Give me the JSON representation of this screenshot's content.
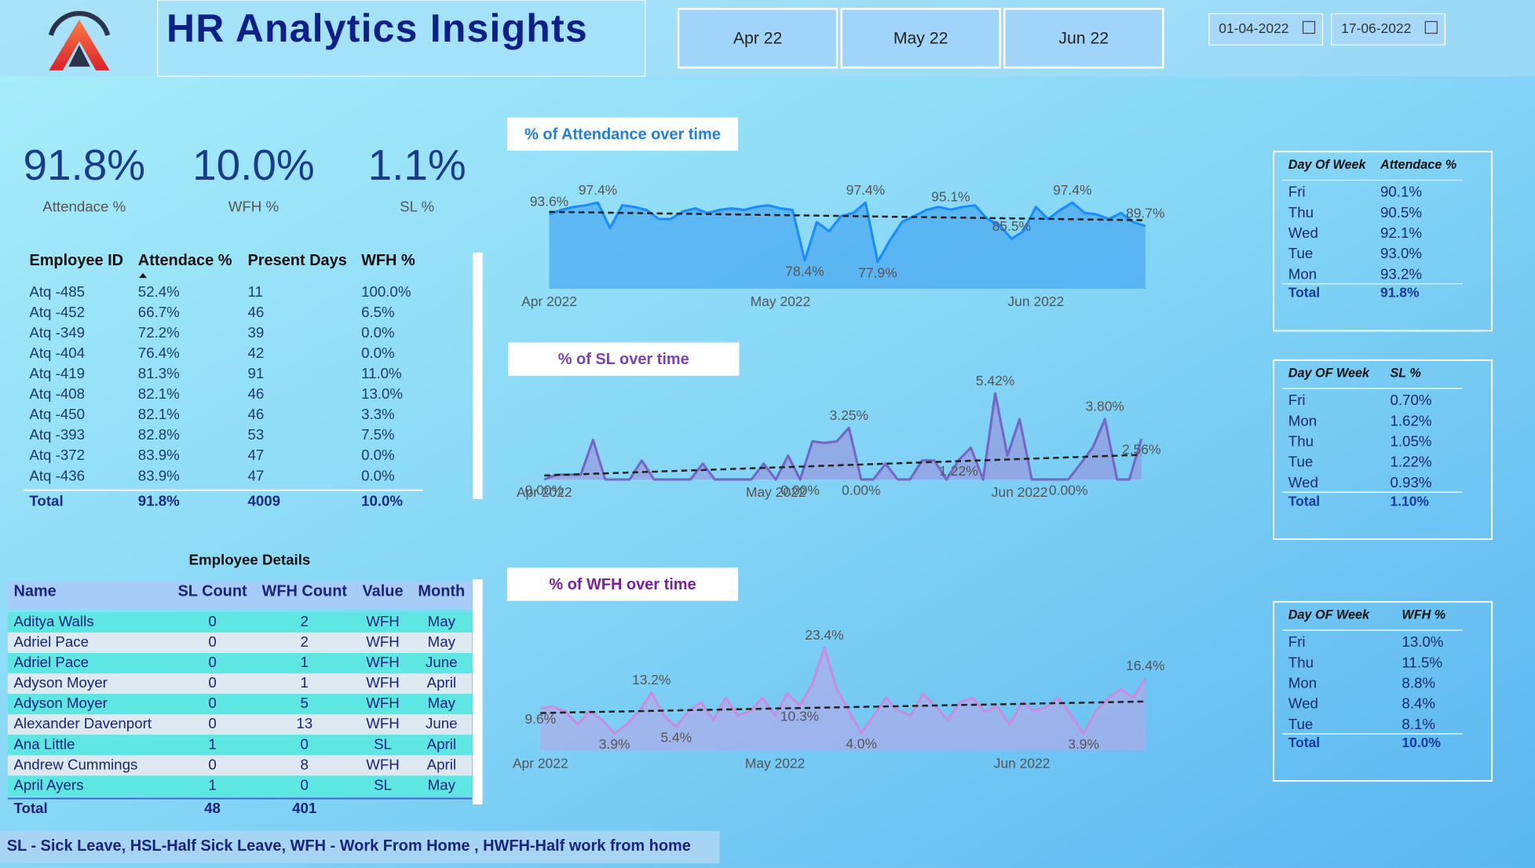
{
  "header": {
    "title": "HR Analytics Insights",
    "months": [
      "Apr 22",
      "May 22",
      "Jun 22"
    ],
    "date_from": "01-04-2022",
    "date_to": "17-06-2022"
  },
  "kpis": [
    {
      "value": "91.8%",
      "label": "Attendace %"
    },
    {
      "value": "10.0%",
      "label": "WFH %"
    },
    {
      "value": "1.1%",
      "label": "SL %"
    }
  ],
  "employee_table": {
    "columns": [
      "Employee ID",
      "Attendace %",
      "Present Days",
      "WFH %"
    ],
    "rows": [
      [
        "Atq -485",
        "52.4%",
        "11",
        "100.0%"
      ],
      [
        "Atq -452",
        "66.7%",
        "46",
        "6.5%"
      ],
      [
        "Atq -349",
        "72.2%",
        "39",
        "0.0%"
      ],
      [
        "Atq -404",
        "76.4%",
        "42",
        "0.0%"
      ],
      [
        "Atq -419",
        "81.3%",
        "91",
        "11.0%"
      ],
      [
        "Atq -408",
        "82.1%",
        "46",
        "13.0%"
      ],
      [
        "Atq -450",
        "82.1%",
        "46",
        "3.3%"
      ],
      [
        "Atq -393",
        "82.8%",
        "53",
        "7.5%"
      ],
      [
        "Atq -372",
        "83.9%",
        "47",
        "0.0%"
      ],
      [
        "Atq -436",
        "83.9%",
        "47",
        "0.0%"
      ]
    ],
    "total": [
      "Total",
      "91.8%",
      "4009",
      "10.0%"
    ]
  },
  "employee_details": {
    "title": "Employee Details",
    "columns": [
      "Name",
      "SL Count",
      "WFH Count",
      "Value",
      "Month"
    ],
    "rows": [
      [
        "Aditya Walls",
        "0",
        "2",
        "WFH",
        "May"
      ],
      [
        "Adriel Pace",
        "0",
        "2",
        "WFH",
        "May"
      ],
      [
        "Adriel Pace",
        "0",
        "1",
        "WFH",
        "June"
      ],
      [
        "Adyson Moyer",
        "0",
        "1",
        "WFH",
        "April"
      ],
      [
        "Adyson Moyer",
        "0",
        "5",
        "WFH",
        "May"
      ],
      [
        "Alexander Davenport",
        "0",
        "13",
        "WFH",
        "June"
      ],
      [
        "Ana Little",
        "1",
        "0",
        "SL",
        "April"
      ],
      [
        "Andrew Cummings",
        "0",
        "8",
        "WFH",
        "April"
      ],
      [
        "April Ayers",
        "1",
        "0",
        "SL",
        "May"
      ]
    ],
    "total": [
      "Total",
      "48",
      "401"
    ]
  },
  "day_tables": [
    {
      "columns": [
        "Day Of Week",
        "Attendace %"
      ],
      "rows": [
        [
          "Fri",
          "90.1%"
        ],
        [
          "Thu",
          "90.5%"
        ],
        [
          "Wed",
          "92.1%"
        ],
        [
          "Tue",
          "93.0%"
        ],
        [
          "Mon",
          "93.2%"
        ]
      ],
      "total": [
        "Total",
        "91.8%"
      ]
    },
    {
      "columns": [
        "Day OF Week",
        "SL %"
      ],
      "rows": [
        [
          "Fri",
          "0.70%"
        ],
        [
          "Mon",
          "1.62%"
        ],
        [
          "Thu",
          "1.05%"
        ],
        [
          "Tue",
          "1.22%"
        ],
        [
          "Wed",
          "0.93%"
        ]
      ],
      "total": [
        "Total",
        "1.10%"
      ]
    },
    {
      "columns": [
        "Day OF Week",
        "WFH %"
      ],
      "rows": [
        [
          "Fri",
          "13.0%"
        ],
        [
          "Thu",
          "11.5%"
        ],
        [
          "Mon",
          "8.8%"
        ],
        [
          "Wed",
          "8.4%"
        ],
        [
          "Tue",
          "8.1%"
        ]
      ],
      "total": [
        "Total",
        "10.0%"
      ]
    }
  ],
  "footer_note": "SL - Sick Leave, HSL-Half Sick Leave, WFH - Work From Home , HWFH-Half work from home",
  "chart_data": [
    {
      "type": "line",
      "title": "% of Attendance over time",
      "color": "#1a8cff",
      "fill": "#3a9ff0",
      "categories": [
        "Apr 2022",
        null,
        null,
        null,
        null,
        null,
        null,
        null,
        null,
        null,
        null,
        null,
        null,
        null,
        null,
        null,
        null,
        null,
        null,
        "May 2022",
        null,
        null,
        null,
        null,
        null,
        null,
        null,
        null,
        null,
        null,
        null,
        null,
        null,
        null,
        null,
        null,
        null,
        null,
        null,
        null,
        "Jun 2022",
        null,
        null,
        null,
        null,
        null,
        null,
        null,
        null,
        null
      ],
      "values": [
        93.6,
        95,
        96,
        96.5,
        97.4,
        89,
        96.5,
        96,
        95,
        92,
        92,
        94.5,
        95.5,
        94,
        95,
        95.5,
        95,
        96,
        96.5,
        95.5,
        95,
        78.4,
        91,
        88,
        93,
        94,
        97.4,
        77.9,
        85,
        91,
        93,
        95,
        96,
        95.1,
        96,
        96.5,
        92,
        90,
        85.5,
        88,
        96,
        92,
        95,
        97.4,
        94,
        93.5,
        92,
        94,
        91,
        89.7
      ],
      "value_labels": [
        "93.6%",
        null,
        null,
        null,
        "97.4%",
        null,
        null,
        null,
        null,
        null,
        null,
        null,
        null,
        null,
        null,
        null,
        null,
        null,
        null,
        null,
        null,
        "78.4%",
        null,
        null,
        null,
        null,
        "97.4%",
        "77.9%",
        null,
        null,
        null,
        null,
        null,
        "95.1%",
        null,
        null,
        null,
        null,
        "85.5%",
        null,
        null,
        null,
        null,
        "97.4%",
        null,
        null,
        null,
        null,
        null,
        "89.7%"
      ]
    },
    {
      "type": "line",
      "title": "% of SL over time",
      "color": "#7468c4",
      "fill": "#9a90dc",
      "categories": [
        "Apr 2022",
        null,
        null,
        null,
        null,
        null,
        null,
        null,
        null,
        null,
        null,
        null,
        null,
        null,
        null,
        null,
        null,
        null,
        null,
        "May 2022",
        null,
        null,
        null,
        null,
        null,
        null,
        null,
        null,
        null,
        null,
        null,
        null,
        null,
        null,
        null,
        null,
        null,
        null,
        null,
        "Jun 2022",
        null,
        null,
        null,
        null,
        null,
        null,
        null,
        null,
        null,
        null
      ],
      "values": [
        0,
        0.3,
        0.3,
        0.3,
        2.5,
        0,
        0,
        0,
        1.2,
        0,
        0,
        0,
        0,
        1,
        0,
        0,
        0,
        0,
        1,
        0,
        1.5,
        0,
        2.4,
        2.3,
        2.4,
        3.25,
        0,
        0,
        1,
        0,
        0,
        1.2,
        1.2,
        0,
        1.22,
        2,
        0,
        5.42,
        1.5,
        3.8,
        0,
        0,
        0,
        0,
        1,
        2,
        3.8,
        0,
        0,
        2.56
      ],
      "value_labels": [
        "0.00%",
        null,
        null,
        null,
        null,
        null,
        null,
        null,
        null,
        null,
        null,
        null,
        null,
        null,
        null,
        null,
        null,
        null,
        null,
        null,
        null,
        "0.00%",
        null,
        null,
        null,
        "3.25%",
        "0.00%",
        null,
        null,
        null,
        null,
        null,
        null,
        null,
        "1.22%",
        null,
        null,
        "5.42%",
        null,
        null,
        null,
        null,
        null,
        "0.00%",
        null,
        null,
        "3.80%",
        null,
        null,
        "2.56%"
      ]
    },
    {
      "type": "line",
      "title": "% of WFH over time",
      "color": "#c88de0",
      "fill": "#b8a6e6",
      "categories": [
        "Apr 2022",
        null,
        null,
        null,
        null,
        null,
        null,
        null,
        null,
        null,
        null,
        null,
        null,
        null,
        null,
        null,
        null,
        null,
        null,
        "May 2022",
        null,
        null,
        null,
        null,
        null,
        null,
        null,
        null,
        null,
        null,
        null,
        null,
        null,
        null,
        null,
        null,
        null,
        null,
        null,
        "Jun 2022",
        null,
        null,
        null,
        null,
        null,
        null,
        null,
        null,
        null,
        null
      ],
      "values": [
        9.6,
        10,
        9,
        6,
        9,
        7,
        3.9,
        6,
        9,
        13.2,
        8,
        5.4,
        9,
        11,
        7,
        12,
        8,
        9,
        12,
        8,
        13,
        10.3,
        15,
        23.4,
        14,
        9,
        4.0,
        8,
        12,
        9,
        8,
        13,
        10,
        7,
        11,
        12,
        9,
        10,
        6,
        11,
        9,
        10,
        12,
        8,
        3.9,
        9,
        12,
        14,
        12,
        16.4
      ],
      "value_labels": [
        "9.6%",
        null,
        null,
        null,
        null,
        null,
        "3.9%",
        null,
        null,
        "13.2%",
        null,
        "5.4%",
        null,
        null,
        null,
        null,
        null,
        null,
        null,
        null,
        null,
        "10.3%",
        null,
        "23.4%",
        null,
        null,
        "4.0%",
        null,
        null,
        null,
        null,
        null,
        null,
        null,
        null,
        null,
        null,
        null,
        null,
        null,
        null,
        null,
        null,
        null,
        "3.9%",
        null,
        null,
        null,
        null,
        "16.4%"
      ]
    }
  ]
}
